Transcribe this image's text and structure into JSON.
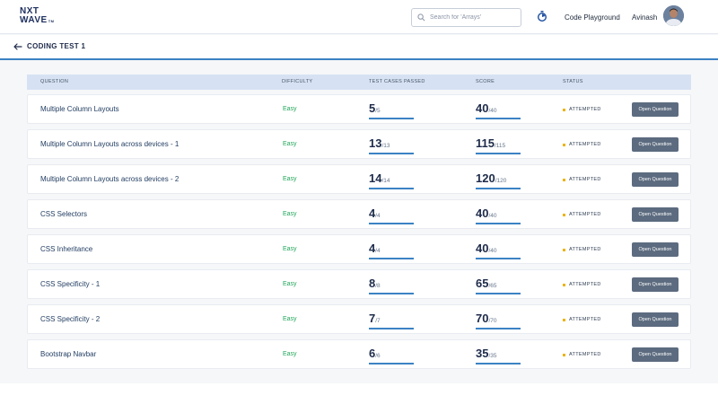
{
  "header": {
    "logo_line1": "NXT",
    "logo_line2": "WAVE",
    "logo_tm": "TM",
    "search_placeholder": "Search for 'Arrays'",
    "nav_link": "Code Playground",
    "user_name": "Avinash"
  },
  "page": {
    "title": "CODING TEST 1"
  },
  "table": {
    "headers": {
      "question": "QUESTION",
      "difficulty": "DIFFICULTY",
      "tests": "TEST CASES PASSED",
      "score": "SCORE",
      "status": "STATUS"
    },
    "action_label": "Open Question",
    "rows": [
      {
        "question": "Multiple Column Layouts",
        "difficulty": "Easy",
        "tests_passed": "5",
        "tests_total": "/5",
        "score": "40",
        "score_total": "/40",
        "status": "ATTEMPTED"
      },
      {
        "question": "Multiple Column Layouts across devices - 1",
        "difficulty": "Easy",
        "tests_passed": "13",
        "tests_total": "/13",
        "score": "115",
        "score_total": "/115",
        "status": "ATTEMPTED"
      },
      {
        "question": "Multiple Column Layouts across devices - 2",
        "difficulty": "Easy",
        "tests_passed": "14",
        "tests_total": "/14",
        "score": "120",
        "score_total": "/120",
        "status": "ATTEMPTED"
      },
      {
        "question": "CSS Selectors",
        "difficulty": "Easy",
        "tests_passed": "4",
        "tests_total": "/4",
        "score": "40",
        "score_total": "/40",
        "status": "ATTEMPTED"
      },
      {
        "question": "CSS Inheritance",
        "difficulty": "Easy",
        "tests_passed": "4",
        "tests_total": "/4",
        "score": "40",
        "score_total": "/40",
        "status": "ATTEMPTED"
      },
      {
        "question": "CSS Specificity - 1",
        "difficulty": "Easy",
        "tests_passed": "8",
        "tests_total": "/8",
        "score": "65",
        "score_total": "/65",
        "status": "ATTEMPTED"
      },
      {
        "question": "CSS Specificity - 2",
        "difficulty": "Easy",
        "tests_passed": "7",
        "tests_total": "/7",
        "score": "70",
        "score_total": "/70",
        "status": "ATTEMPTED"
      },
      {
        "question": "Bootstrap Navbar",
        "difficulty": "Easy",
        "tests_passed": "6",
        "tests_total": "/6",
        "score": "35",
        "score_total": "/35",
        "status": "ATTEMPTED"
      }
    ],
    "progress": [
      1,
      1,
      1,
      1,
      1,
      1,
      1,
      1
    ]
  },
  "colors": {
    "accent": "#3b82c4",
    "easy": "#22a55a",
    "attempted": "#eab308",
    "button": "#5c6b7f"
  },
  "icons": {
    "search": "search-icon",
    "timer": "timer-icon",
    "back": "arrow-left-icon",
    "avatar": "avatar"
  }
}
